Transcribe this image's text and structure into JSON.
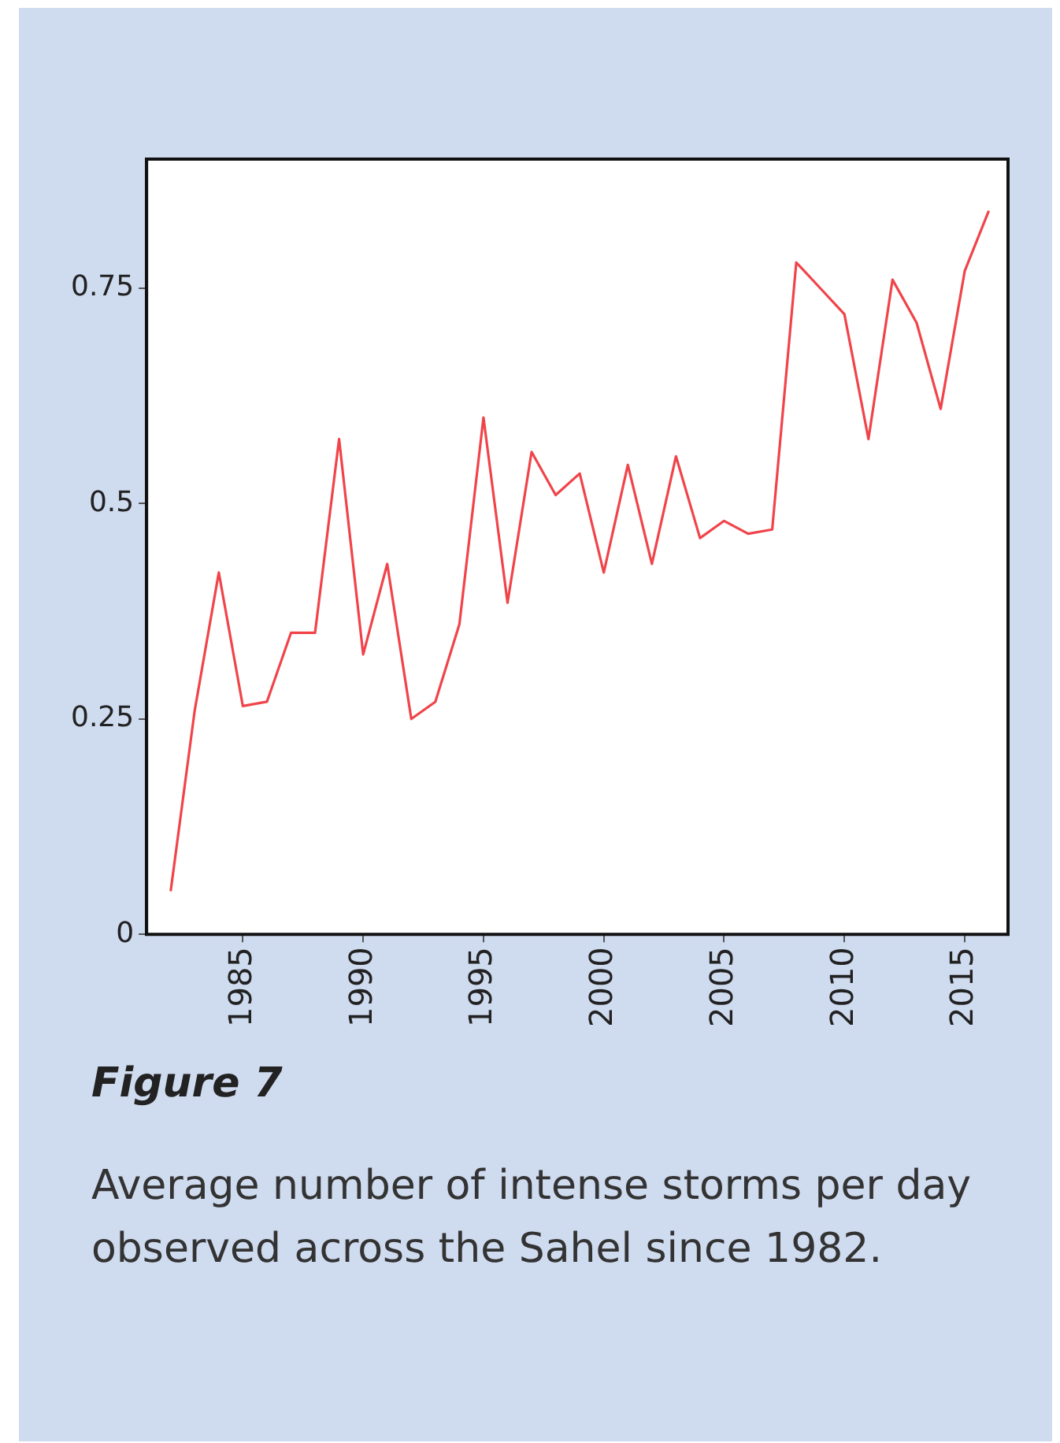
{
  "chart_data": {
    "type": "line",
    "title": "Figure 7",
    "annotations": [
      "Average number of intense storms per day observed across the Sahel since 1982."
    ],
    "x": [
      1982,
      1983,
      1984,
      1985,
      1986,
      1987,
      1988,
      1989,
      1990,
      1991,
      1992,
      1993,
      1994,
      1995,
      1996,
      1997,
      1998,
      1999,
      2000,
      2001,
      2002,
      2003,
      2004,
      2005,
      2006,
      2007,
      2008,
      2009,
      2010,
      2011,
      2012,
      2013,
      2014,
      2015,
      2016
    ],
    "series": [
      {
        "color": "#f0444a",
        "values": [
          0.05,
          0.26,
          0.42,
          0.265,
          0.27,
          0.35,
          0.35,
          0.575,
          0.325,
          0.43,
          0.25,
          0.27,
          0.36,
          0.6,
          0.385,
          0.56,
          0.51,
          0.535,
          0.42,
          0.545,
          0.43,
          0.555,
          0.46,
          0.48,
          0.465,
          0.47,
          0.78,
          0.75,
          0.72,
          0.575,
          0.76,
          0.71,
          0.61,
          0.77,
          0.84
        ]
      }
    ],
    "xlim": [
      1981,
      2016.8
    ],
    "xticks": [
      1985,
      1990,
      1995,
      2000,
      2005,
      2010,
      2015
    ],
    "ylim": [
      0,
      0.9
    ],
    "yticks": [
      0,
      0.25,
      0.5,
      0.75
    ],
    "marker": "none",
    "line_style": "solid"
  }
}
